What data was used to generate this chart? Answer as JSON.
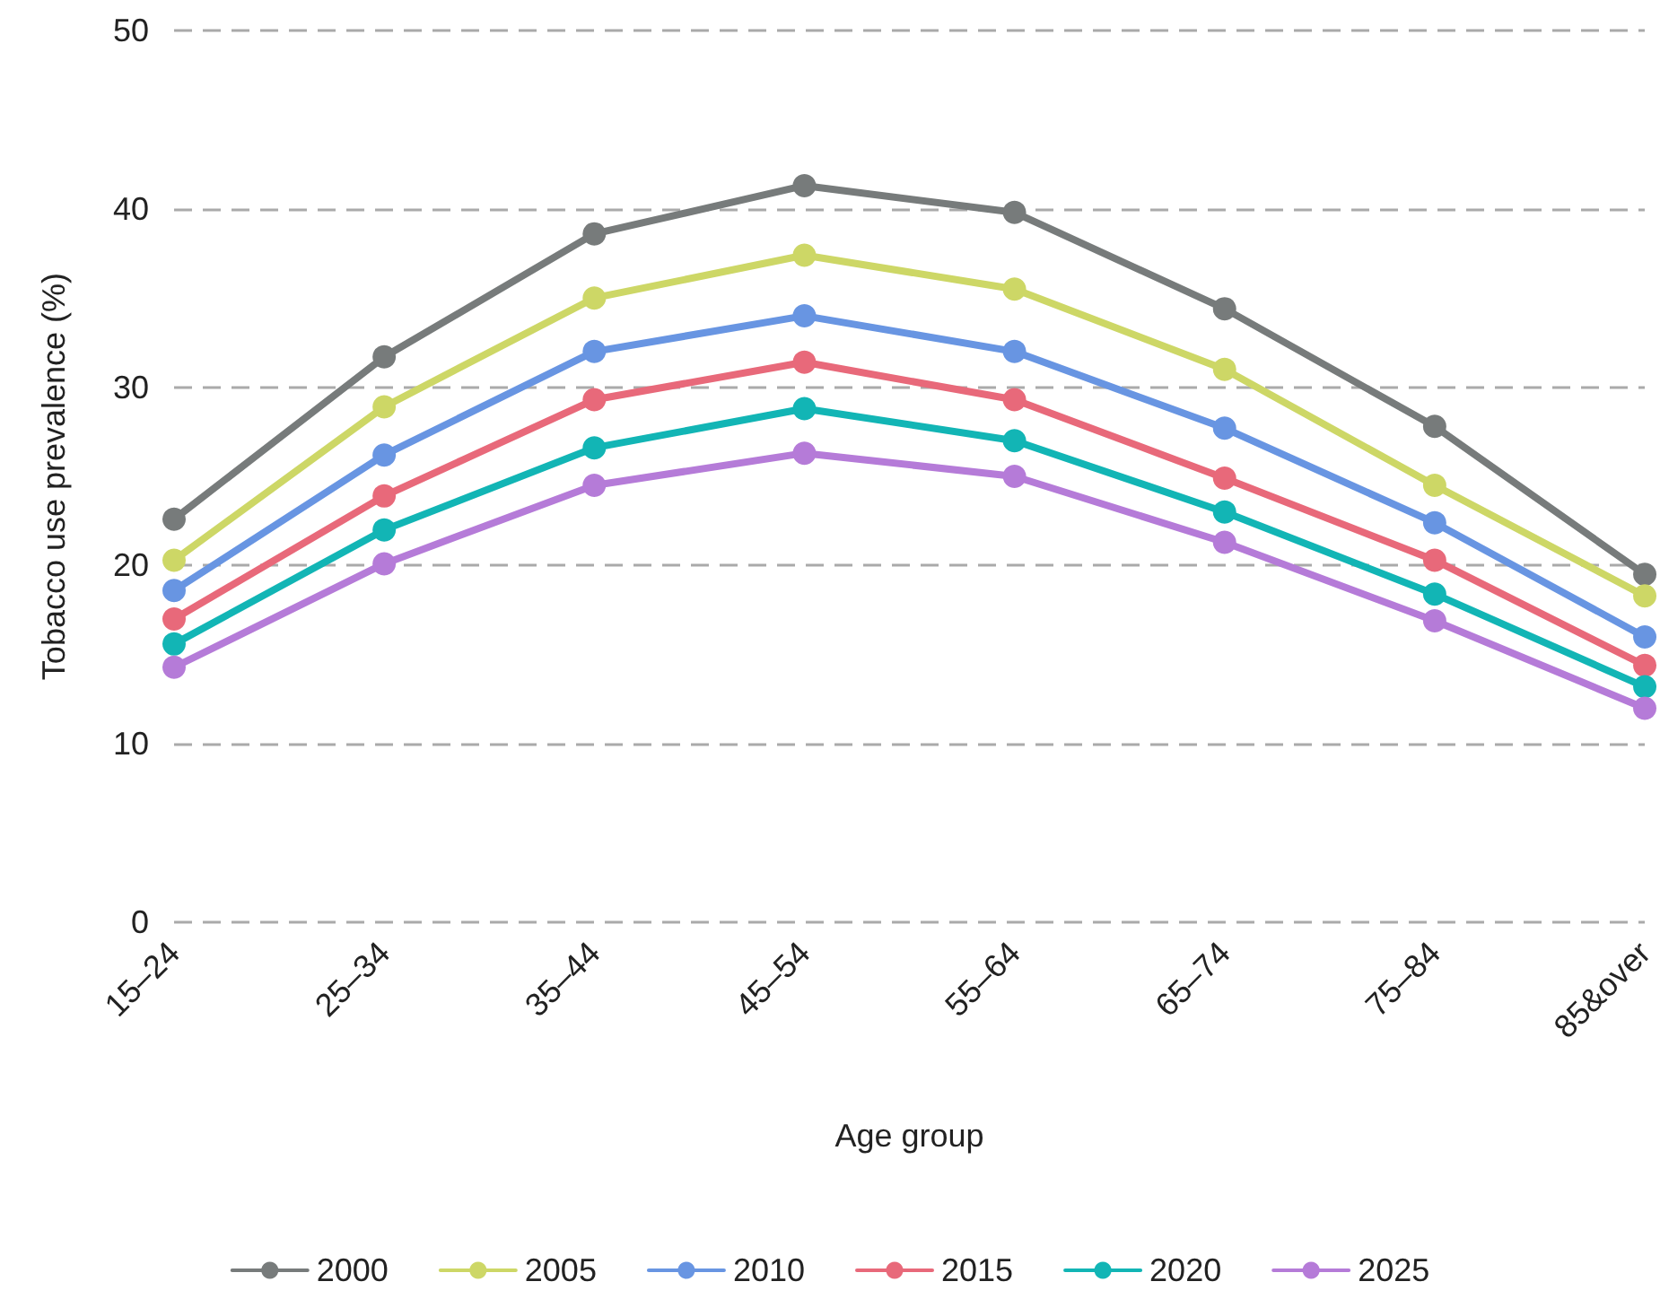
{
  "chart_data": {
    "type": "line",
    "xlabel": "Age group",
    "ylabel": "Tobacco use prevalence (%)",
    "categories": [
      "15–24",
      "25–34",
      "35–44",
      "45–54",
      "55–64",
      "65–74",
      "75–84",
      "85&over"
    ],
    "series": [
      {
        "name": "2000",
        "color": "#777b7b",
        "values": [
          22.6,
          31.7,
          38.6,
          41.3,
          39.8,
          34.4,
          27.8,
          19.5
        ]
      },
      {
        "name": "2005",
        "color": "#cdd766",
        "values": [
          20.3,
          28.9,
          35.0,
          37.4,
          35.5,
          31.0,
          24.5,
          18.3
        ]
      },
      {
        "name": "2010",
        "color": "#6895e2",
        "values": [
          18.6,
          26.2,
          32.0,
          34.0,
          32.0,
          27.7,
          22.4,
          16.0
        ]
      },
      {
        "name": "2015",
        "color": "#e8697a",
        "values": [
          17.0,
          23.9,
          29.3,
          31.4,
          29.3,
          24.9,
          20.3,
          14.4
        ]
      },
      {
        "name": "2020",
        "color": "#12b5b5",
        "values": [
          15.6,
          22.0,
          26.6,
          28.8,
          27.0,
          23.0,
          18.4,
          13.2
        ]
      },
      {
        "name": "2025",
        "color": "#b57bd8",
        "values": [
          14.3,
          20.1,
          24.5,
          26.3,
          25.0,
          21.3,
          16.9,
          12.0
        ]
      }
    ],
    "ylim": [
      0,
      50
    ],
    "yticks": [
      0,
      10,
      20,
      30,
      40,
      50
    ],
    "grid": "y",
    "legend": "bottom",
    "marker": "circle",
    "line_style": "solid"
  }
}
